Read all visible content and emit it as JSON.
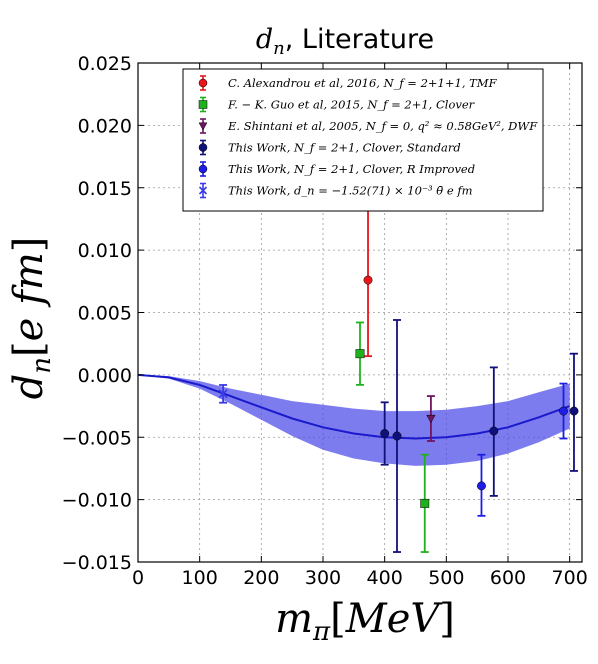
{
  "chart_data": {
    "type": "scatter",
    "title": "d_n, Literature",
    "xlabel": "m_π[MeV]",
    "ylabel": "d_n[e fm]",
    "xlim": [
      0,
      720
    ],
    "ylim": [
      -0.015,
      0.025
    ],
    "grid": true,
    "legend_position": "top-right",
    "x_ticks": [
      "0",
      "100",
      "200",
      "300",
      "400",
      "500",
      "600",
      "700"
    ],
    "y_ticks": [
      "0.025",
      "0.020",
      "0.015",
      "0.010",
      "0.005",
      "0.000",
      "−0.005",
      "−0.010",
      "−0.015"
    ],
    "series": [
      {
        "name": "C. Alexandrou et al, 2016, N_f = 2+1+1, TMF",
        "color": "#e8161d",
        "marker": "circle",
        "points": [
          {
            "x": 373,
            "y": 0.0076,
            "ylo": 0.0015,
            "yhi": 0.0138
          }
        ]
      },
      {
        "name": "F. − K. Guo et al, 2015, N_f = 2+1, Clover",
        "color": "#1fb11d",
        "marker": "square",
        "points": [
          {
            "x": 360,
            "y": 0.0017,
            "ylo": -0.0008,
            "yhi": 0.0042
          },
          {
            "x": 465,
            "y": -0.0103,
            "ylo": -0.0142,
            "yhi": -0.0064
          }
        ]
      },
      {
        "name": "E. Shintani et al, 2005, N_f = 0, q² ≈ 0.58GeV², DWF",
        "color": "#6e1460",
        "marker": "triangle-down",
        "points": [
          {
            "x": 475,
            "y": -0.0035,
            "ylo": -0.0053,
            "yhi": -0.0017
          }
        ]
      },
      {
        "name": "This Work, N_f = 2+1, Clover, Standard",
        "color": "#10107a",
        "marker": "circle",
        "points": [
          {
            "x": 400,
            "y": -0.0047,
            "ylo": -0.0072,
            "yhi": -0.0022
          },
          {
            "x": 420,
            "y": -0.0049,
            "ylo": -0.0142,
            "yhi": 0.0044
          },
          {
            "x": 577,
            "y": -0.0045,
            "ylo": -0.0097,
            "yhi": 0.0006
          },
          {
            "x": 707,
            "y": -0.0029,
            "ylo": -0.0077,
            "yhi": 0.0017
          }
        ]
      },
      {
        "name": "This Work, N_f = 2+1, Clover, R Improved",
        "color": "#1d1de3",
        "marker": "circle",
        "points": [
          {
            "x": 557,
            "y": -0.0089,
            "ylo": -0.0113,
            "yhi": -0.0064
          },
          {
            "x": 690,
            "y": -0.0029,
            "ylo": -0.0051,
            "yhi": -0.0007
          }
        ]
      },
      {
        "name": "This Work, d_n = −1.52(71) × 10⁻³ θ̄ e fm",
        "color": "#3a3ae8",
        "marker": "x",
        "points": [
          {
            "x": 138,
            "y": -0.00152,
            "ylo": -0.00223,
            "yhi": -0.00081
          }
        ]
      }
    ],
    "fit_curve": {
      "color": "#1a1acc",
      "band_color": "#4a4ae8",
      "x": [
        0,
        50,
        100,
        150,
        200,
        250,
        300,
        350,
        400,
        450,
        500,
        550,
        600,
        650,
        700
      ],
      "y": [
        0,
        -0.0002,
        -0.0008,
        -0.0017,
        -0.0026,
        -0.0035,
        -0.0042,
        -0.0047,
        -0.005,
        -0.0051,
        -0.005,
        -0.0047,
        -0.0042,
        -0.0034,
        -0.0025
      ],
      "lower": [
        0,
        -0.0003,
        -0.0011,
        -0.0023,
        -0.0036,
        -0.0049,
        -0.006,
        -0.0067,
        -0.0071,
        -0.0073,
        -0.0072,
        -0.0069,
        -0.0063,
        -0.0054,
        -0.0043
      ],
      "upper": [
        0,
        -0.0001,
        -0.0005,
        -0.0011,
        -0.0016,
        -0.0021,
        -0.0024,
        -0.0027,
        -0.0029,
        -0.0029,
        -0.0028,
        -0.0025,
        -0.0021,
        -0.0014,
        -0.0007
      ]
    }
  }
}
